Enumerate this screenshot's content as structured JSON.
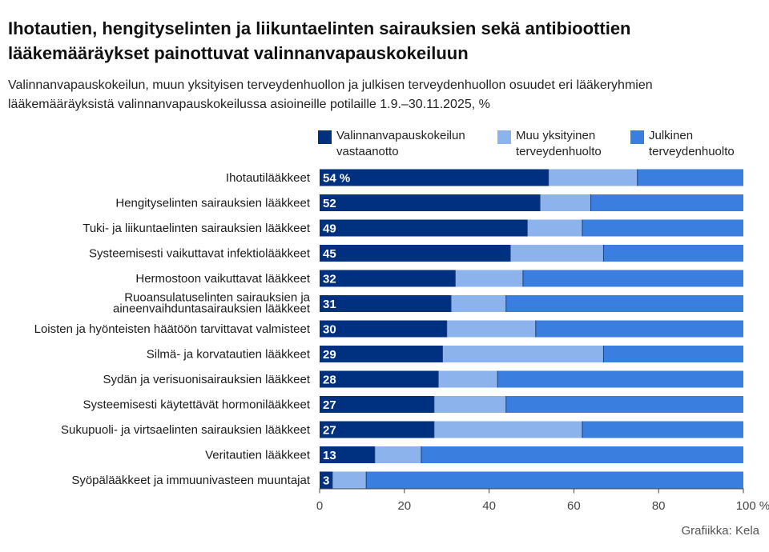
{
  "title": "Ihotautien, hengityselinten ja liikuntaelinten sairauksien sekä antibioottien lääkemääräykset painottuvat valinnanvapauskokeiluun",
  "subtitle": "Valinnanvapauskokeilun, muun yksityisen terveydenhuollon ja julkisen terveydenhuollon osuudet eri lääkeryhmien lääkemääräyksistä valinnanvapauskokeilussa asioineille potilaille 1.9.–30.11.2025, %",
  "source": "Grafiikka: Kela",
  "colors": {
    "valinnanvapaus": "#003180",
    "muu_yksityinen": "#8db3ec",
    "julkinen": "#3a7ee0"
  },
  "legend": [
    {
      "label": "Valinnanvapauskokeilun\nvastaanotto",
      "color": "#003180"
    },
    {
      "label": "Muu yksityinen\nterveydenhuolto",
      "color": "#8db3ec"
    },
    {
      "label": "Julkinen\nterveydenhuolto",
      "color": "#3a7ee0"
    }
  ],
  "chart_data": {
    "type": "bar",
    "orientation": "horizontal",
    "stacked": true,
    "categories": [
      "Ihotautilääkkeet",
      "Hengityselinten sairauksien lääkkeet",
      "Tuki- ja liikuntaelinten sairauksien lääkkeet",
      "Systeemisesti vaikuttavat infektiolääkkeet",
      "Hermostoon vaikuttavat lääkkeet",
      "Ruoansulatuselinten sairauksien ja\naineenvaihduntasairauksien lääkkeet",
      "Loisten ja hyönteisten häätöön tarvittavat valmisteet",
      "Silmä- ja korvatautien lääkkeet",
      "Sydän ja verisuonisairauksien lääkkeet",
      "Systeemisesti käytettävät hormonilääkkeet",
      "Sukupuoli- ja virtsaelinten sairauksien lääkkeet",
      "Veritautien lääkkeet",
      "Syöpälääkkeet ja immuunivasteen muuntajat"
    ],
    "series": [
      {
        "name": "Valinnanvapauskokeilun vastaanotto",
        "color": "#003180",
        "values": [
          54,
          52,
          49,
          45,
          32,
          31,
          30,
          29,
          28,
          27,
          27,
          13,
          3
        ]
      },
      {
        "name": "Muu yksityinen terveydenhuolto",
        "color": "#8db3ec",
        "values": [
          21,
          12,
          13,
          22,
          16,
          13,
          21,
          38,
          14,
          17,
          35,
          11,
          8
        ]
      },
      {
        "name": "Julkinen terveydenhuolto",
        "color": "#3a7ee0",
        "values": [
          25,
          36,
          38,
          33,
          52,
          56,
          49,
          33,
          58,
          56,
          38,
          76,
          89
        ]
      }
    ],
    "data_labels": [
      "54 %",
      "52",
      "49",
      "45",
      "32",
      "31",
      "30",
      "29",
      "28",
      "27",
      "27",
      "13",
      "3"
    ],
    "xticks": [
      0,
      20,
      40,
      60,
      80,
      100
    ],
    "xtick_labels": [
      "0",
      "20",
      "40",
      "60",
      "80",
      "100 %"
    ],
    "xlim": [
      0,
      100
    ],
    "grid": false,
    "legend_position": "top"
  }
}
